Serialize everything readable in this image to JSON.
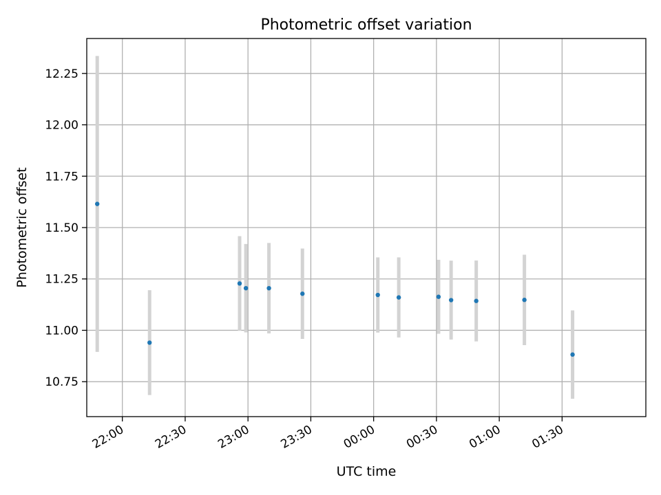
{
  "chart_data": {
    "type": "scatter",
    "title": "Photometric offset variation",
    "xlabel": "UTC time",
    "ylabel": "Photometric offset",
    "x_ticks": [
      "22:00",
      "22:30",
      "23:00",
      "23:30",
      "00:00",
      "00:30",
      "01:00",
      "01:30"
    ],
    "y_ticks": [
      "10.75",
      "11.00",
      "11.25",
      "11.50",
      "11.75",
      "12.00",
      "12.25"
    ],
    "ylim": [
      10.58,
      12.42
    ],
    "xlim": [
      "21:43",
      "02:10"
    ],
    "grid": true,
    "marker_color": "#1f77b4",
    "errorbar_color": "#d3d3d3",
    "points": [
      {
        "x": "21:48",
        "y": 11.615,
        "err": 0.72
      },
      {
        "x": "22:13",
        "y": 10.94,
        "err": 0.255
      },
      {
        "x": "22:56",
        "y": 11.228,
        "err": 0.23
      },
      {
        "x": "22:59",
        "y": 11.205,
        "err": 0.215
      },
      {
        "x": "23:10",
        "y": 11.205,
        "err": 0.22
      },
      {
        "x": "23:26",
        "y": 11.178,
        "err": 0.22
      },
      {
        "x": "00:02",
        "y": 11.172,
        "err": 0.183
      },
      {
        "x": "00:12",
        "y": 11.16,
        "err": 0.195
      },
      {
        "x": "00:31",
        "y": 11.163,
        "err": 0.18
      },
      {
        "x": "00:37",
        "y": 11.147,
        "err": 0.192
      },
      {
        "x": "00:49",
        "y": 11.143,
        "err": 0.197
      },
      {
        "x": "01:12",
        "y": 11.148,
        "err": 0.22
      },
      {
        "x": "01:35",
        "y": 10.882,
        "err": 0.215
      }
    ]
  }
}
